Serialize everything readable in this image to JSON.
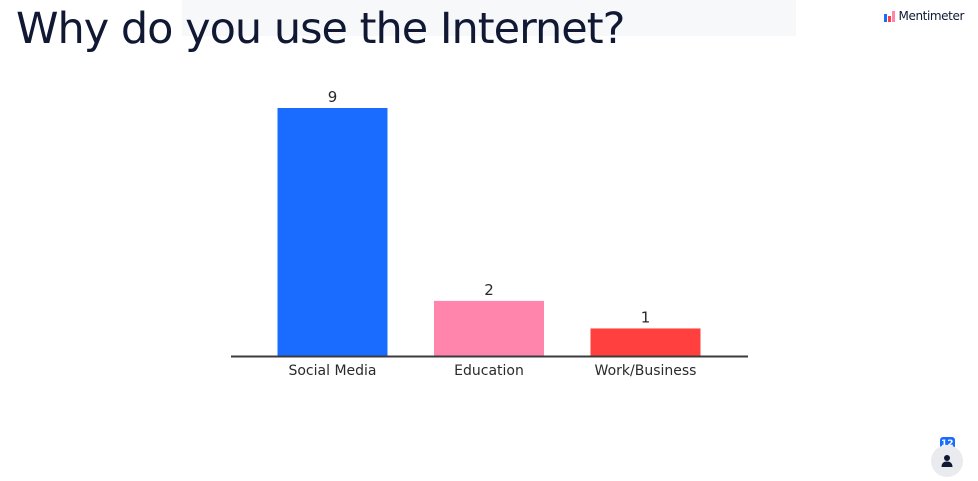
{
  "title": "Why do you use the Internet?",
  "brand": {
    "name": "Mentimeter",
    "logo_icon": "mentimeter-logo-icon"
  },
  "participants": {
    "count": "12",
    "icon": "person-icon"
  },
  "colors": {
    "title_text": "#101834",
    "axis_line": "#3b3b3b",
    "label_text": "#2a2a2a",
    "participant_badge": "#196cff"
  },
  "chart_data": {
    "type": "bar",
    "categories": [
      "Social Media",
      "Education",
      "Work/Business"
    ],
    "values": [
      9,
      2,
      1
    ],
    "colors": [
      "#196cff",
      "#ff85ad",
      "#ff403f"
    ],
    "title": "Why do you use the Internet?",
    "xlabel": "",
    "ylabel": "",
    "ylim": [
      0,
      9
    ],
    "grid": false,
    "legend": "none",
    "data_labels": true
  }
}
